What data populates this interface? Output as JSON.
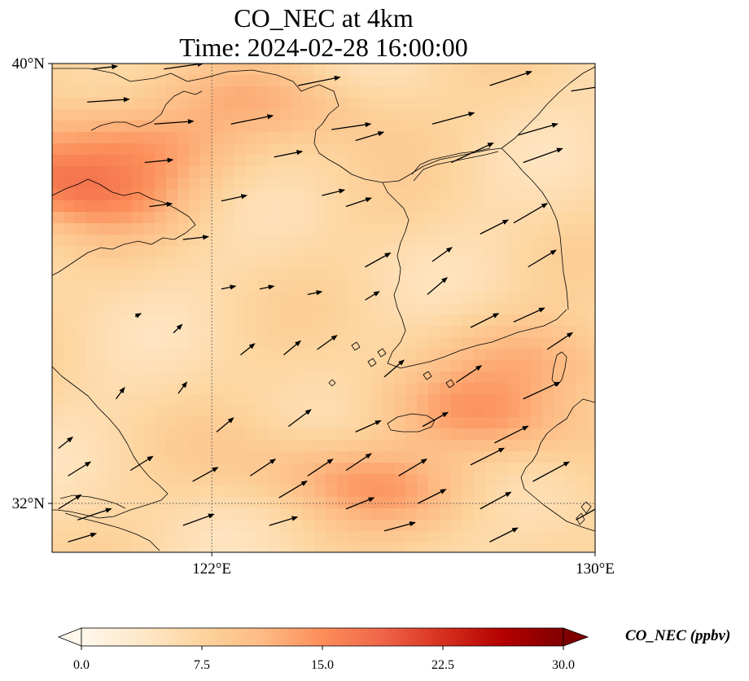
{
  "title": "CO_NEC at 4km",
  "subtitle": "Time: 2024-02-28 16:00:00",
  "lon_range": [
    118.667,
    130
  ],
  "lat_range": [
    31.111,
    40
  ],
  "lon_ticks": [
    {
      "value": 122,
      "label": "122°E"
    },
    {
      "value": 130,
      "label": "130°E"
    }
  ],
  "lat_ticks": [
    {
      "value": 40,
      "label": "40°N"
    },
    {
      "value": 32,
      "label": "32°N"
    }
  ],
  "gridlines": {
    "lon": [
      122
    ],
    "lat": [
      32
    ],
    "style": "dotted"
  },
  "colorbar": {
    "label": "CO_NEC (ppbv)",
    "min": 0,
    "max": 30,
    "ticks": [
      {
        "value": 0,
        "label": "0.0"
      },
      {
        "value": 7.5,
        "label": "7.5"
      },
      {
        "value": 15,
        "label": "15.0"
      },
      {
        "value": 22.5,
        "label": "22.5"
      },
      {
        "value": 30,
        "label": "30.0"
      }
    ],
    "colormap": "OrRd",
    "colors": [
      "#fff7ec",
      "#fee8c8",
      "#fdd49e",
      "#fdbb84",
      "#fc8d59",
      "#ef6548",
      "#d7301f",
      "#b30000",
      "#7f0000"
    ],
    "extend": "both"
  },
  "field": {
    "background_ppbv": 6.5,
    "plumes": [
      {
        "name": "north-west-band",
        "lon": 120.0,
        "lat": 38.6,
        "value": 13.5
      },
      {
        "name": "bohai-band",
        "lon": 123.6,
        "lat": 39.3,
        "value": 11.0
      },
      {
        "name": "shandong-peak",
        "lon": 118.8,
        "lat": 37.8,
        "value": 16.0
      },
      {
        "name": "yellow-sea-plume",
        "lon": 125.2,
        "lat": 32.4,
        "value": 13.0
      },
      {
        "name": "korea-strait-plume",
        "lon": 127.6,
        "lat": 33.6,
        "value": 12.5
      },
      {
        "name": "east-sea-plume",
        "lon": 129.2,
        "lat": 34.6,
        "value": 11.5
      }
    ]
  },
  "wind": {
    "vectors": [
      [
        119.5,
        39.9,
        0.9,
        0.1
      ],
      [
        121.0,
        39.9,
        1.4,
        0.2
      ],
      [
        123.8,
        39.6,
        1.5,
        0.3
      ],
      [
        127.8,
        39.6,
        1.5,
        0.5
      ],
      [
        129.5,
        39.5,
        1.3,
        0.2
      ],
      [
        119.4,
        39.3,
        1.5,
        0.1
      ],
      [
        120.8,
        38.9,
        1.4,
        0.1
      ],
      [
        122.4,
        38.9,
        1.5,
        0.3
      ],
      [
        124.5,
        38.8,
        1.4,
        0.2
      ],
      [
        126.6,
        38.9,
        1.5,
        0.4
      ],
      [
        128.4,
        38.7,
        1.4,
        0.4
      ],
      [
        120.6,
        38.2,
        1.0,
        0.1
      ],
      [
        123.3,
        38.3,
        1.0,
        0.2
      ],
      [
        127.0,
        38.2,
        1.5,
        0.7
      ],
      [
        128.5,
        38.2,
        1.4,
        0.5
      ],
      [
        120.7,
        37.4,
        0.8,
        0.1
      ],
      [
        122.2,
        37.5,
        0.9,
        0.2
      ],
      [
        124.8,
        37.4,
        0.9,
        0.3
      ],
      [
        125.0,
        38.6,
        1.0,
        0.3
      ],
      [
        121.4,
        36.8,
        0.9,
        0.1
      ],
      [
        124.3,
        37.6,
        0.8,
        0.2
      ],
      [
        128.3,
        37.1,
        1.2,
        0.7
      ],
      [
        127.6,
        36.9,
        1.0,
        0.5
      ],
      [
        125.2,
        36.3,
        0.9,
        0.5
      ],
      [
        126.6,
        36.4,
        0.7,
        0.5
      ],
      [
        128.6,
        36.3,
        1.0,
        0.6
      ],
      [
        122.2,
        35.9,
        0.5,
        0.1
      ],
      [
        123.0,
        35.9,
        0.5,
        0.1
      ],
      [
        124.0,
        35.8,
        0.5,
        0.1
      ],
      [
        125.2,
        35.7,
        0.5,
        0.3
      ],
      [
        126.5,
        35.8,
        0.7,
        0.6
      ],
      [
        127.4,
        35.2,
        1.0,
        0.5
      ],
      [
        128.3,
        35.3,
        1.1,
        0.5
      ],
      [
        129.0,
        34.8,
        0.9,
        0.6
      ],
      [
        120.4,
        35.4,
        0.2,
        0.1
      ],
      [
        121.2,
        35.1,
        0.3,
        0.3
      ],
      [
        122.6,
        34.7,
        0.5,
        0.4
      ],
      [
        123.5,
        34.7,
        0.6,
        0.5
      ],
      [
        124.2,
        34.8,
        0.7,
        0.5
      ],
      [
        125.6,
        34.3,
        0.7,
        0.6
      ],
      [
        127.1,
        34.2,
        0.9,
        0.6
      ],
      [
        128.5,
        33.9,
        1.3,
        0.6
      ],
      [
        120.0,
        33.9,
        0.3,
        0.4
      ],
      [
        121.3,
        34.0,
        0.3,
        0.4
      ],
      [
        123.6,
        33.4,
        0.8,
        0.6
      ],
      [
        125.0,
        33.3,
        0.9,
        0.4
      ],
      [
        126.4,
        33.4,
        0.9,
        0.5
      ],
      [
        127.9,
        33.1,
        1.2,
        0.6
      ],
      [
        122.1,
        33.3,
        0.6,
        0.5
      ],
      [
        118.8,
        33.0,
        0.5,
        0.4
      ],
      [
        122.8,
        32.5,
        0.9,
        0.6
      ],
      [
        124.0,
        32.5,
        0.9,
        0.6
      ],
      [
        124.8,
        32.6,
        0.9,
        0.6
      ],
      [
        125.9,
        32.5,
        1.0,
        0.6
      ],
      [
        127.4,
        32.7,
        1.2,
        0.6
      ],
      [
        128.7,
        32.4,
        1.3,
        0.7
      ],
      [
        119.0,
        32.5,
        0.8,
        0.5
      ],
      [
        120.3,
        32.6,
        0.8,
        0.5
      ],
      [
        121.6,
        32.4,
        0.9,
        0.5
      ],
      [
        123.4,
        32.1,
        1.0,
        0.6
      ],
      [
        124.8,
        31.9,
        1.0,
        0.4
      ],
      [
        126.3,
        32.0,
        1.0,
        0.5
      ],
      [
        127.6,
        31.9,
        1.1,
        0.6
      ],
      [
        119.2,
        31.7,
        1.2,
        0.4
      ],
      [
        121.4,
        31.6,
        1.1,
        0.4
      ],
      [
        123.2,
        31.6,
        1.0,
        0.3
      ],
      [
        125.6,
        31.5,
        1.1,
        0.3
      ],
      [
        127.8,
        31.3,
        1.0,
        0.5
      ],
      [
        129.6,
        31.7,
        0.9,
        0.5
      ],
      [
        118.8,
        31.9,
        0.8,
        0.5
      ],
      [
        119.0,
        31.3,
        1.0,
        0.3
      ]
    ]
  }
}
